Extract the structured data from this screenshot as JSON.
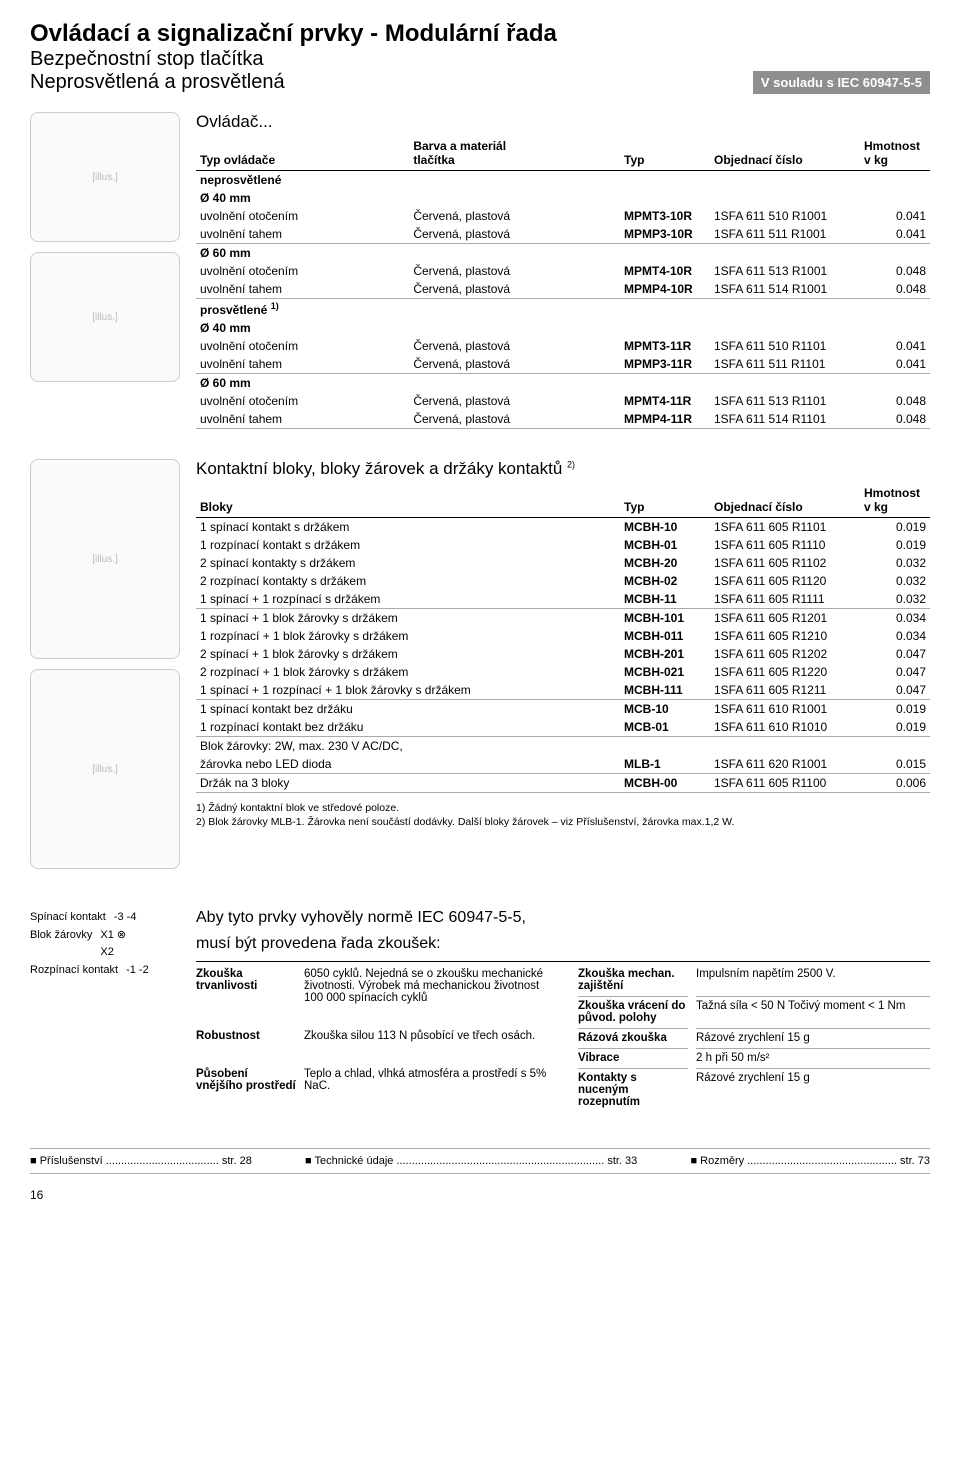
{
  "header": {
    "title": "Ovládací a signalizační prvky - Modulární řada",
    "sub1": "Bezpečnostní stop tlačítka",
    "sub2": "Neprosvětlená a prosvětlená",
    "iec_badge": "V souladu s IEC 60947-5-5"
  },
  "actuator_section": {
    "heading": "Ovládač...",
    "columns": {
      "c1": "Typ ovládače",
      "c2a": "Barva a materiál",
      "c2b": "tlačítka",
      "c3": "Typ",
      "c4": "Objednací číslo",
      "c5": "Hmotnost v kg"
    },
    "group1": "neprosvětlené",
    "d1": "Ø 40 mm",
    "rows1": [
      {
        "a": "uvolnění otočením",
        "b": "Červená, plastová",
        "t": "MPMT3-10R",
        "o": "1SFA 611 510 R1001",
        "w": "0.041"
      },
      {
        "a": "uvolnění tahem",
        "b": "Červená, plastová",
        "t": "MPMP3-10R",
        "o": "1SFA 611 511 R1001",
        "w": "0.041"
      }
    ],
    "d2": "Ø 60 mm",
    "rows2": [
      {
        "a": "uvolnění otočením",
        "b": "Červená, plastová",
        "t": "MPMT4-10R",
        "o": "1SFA 611 513 R1001",
        "w": "0.048"
      },
      {
        "a": "uvolnění tahem",
        "b": "Červená, plastová",
        "t": "MPMP4-10R",
        "o": "1SFA 611 514 R1001",
        "w": "0.048"
      }
    ],
    "group2": "prosvětlené ",
    "group2_sup": "1)",
    "d3": "Ø 40 mm",
    "rows3": [
      {
        "a": "uvolnění otočením",
        "b": "Červená, plastová",
        "t": "MPMT3-11R",
        "o": "1SFA 611 510 R1101",
        "w": "0.041"
      },
      {
        "a": "uvolnění tahem",
        "b": "Červená, plastová",
        "t": "MPMP3-11R",
        "o": "1SFA 611 511 R1101",
        "w": "0.041"
      }
    ],
    "d4": "Ø 60 mm",
    "rows4": [
      {
        "a": "uvolnění otočením",
        "b": "Červená, plastová",
        "t": "MPMT4-11R",
        "o": "1SFA 611 513 R1101",
        "w": "0.048"
      },
      {
        "a": "uvolnění tahem",
        "b": "Červená, plastová",
        "t": "MPMP4-11R",
        "o": "1SFA 611 514 R1101",
        "w": "0.048"
      }
    ]
  },
  "blocks_section": {
    "heading": "Kontaktní bloky, bloky žárovek  a držáky kontaktů ",
    "heading_sup": "2)",
    "columns": {
      "c1": "Bloky",
      "c2": "Typ",
      "c3": "Objednací číslo",
      "c4": "Hmotnost v kg"
    },
    "grpA": [
      {
        "d": "1 spínací kontakt s držákem",
        "t": "MCBH-10",
        "o": "1SFA 611 605 R1101",
        "w": "0.019"
      },
      {
        "d": "1 rozpínací kontakt s držákem",
        "t": "MCBH-01",
        "o": "1SFA 611 605 R1110",
        "w": "0.019"
      },
      {
        "d": "2 spínací kontakty s držákem",
        "t": "MCBH-20",
        "o": "1SFA 611 605 R1102",
        "w": "0.032"
      },
      {
        "d": "2 rozpínací kontakty s držákem",
        "t": "MCBH-02",
        "o": "1SFA 611 605 R1120",
        "w": "0.032"
      },
      {
        "d": "1 spínací + 1 rozpínací s držákem",
        "t": "MCBH-11",
        "o": "1SFA 611 605 R1111",
        "w": "0.032"
      }
    ],
    "grpB": [
      {
        "d": "1 spínací + 1 blok žárovky s držákem",
        "t": "MCBH-101",
        "o": "1SFA 611 605 R1201",
        "w": "0.034"
      },
      {
        "d": "1 rozpínací + 1 blok žárovky s držákem",
        "t": "MCBH-011",
        "o": "1SFA 611 605 R1210",
        "w": "0.034"
      },
      {
        "d": "2 spínací + 1 blok žárovky s držákem",
        "t": "MCBH-201",
        "o": "1SFA 611 605 R1202",
        "w": "0.047"
      },
      {
        "d": "2 rozpínací + 1 blok žárovky s držákem",
        "t": "MCBH-021",
        "o": "1SFA 611 605 R1220",
        "w": "0.047"
      },
      {
        "d": "1 spínací + 1 rozpínací + 1 blok žárovky s držákem",
        "t": "MCBH-111",
        "o": "1SFA 611 605 R1211",
        "w": "0.047"
      }
    ],
    "grpC": [
      {
        "d": "1 spínací kontakt bez držáku",
        "t": "MCB-10",
        "o": "1SFA 611 610 R1001",
        "w": "0.019"
      },
      {
        "d": "1 rozpínací kontakt bez držáku",
        "t": "MCB-01",
        "o": "1SFA 611 610 R1010",
        "w": "0.019"
      }
    ],
    "grpD_label1": "Blok žárovky: 2W, max. 230 V AC/DC,",
    "grpD_label2": "žárovka nebo LED dioda",
    "grpD": {
      "t": "MLB-1",
      "o": "1SFA 611 620 R1001",
      "w": "0.015"
    },
    "grpE_label": "Držák na 3 bloky",
    "grpE": {
      "t": "MCBH-00",
      "o": "1SFA 611 605 R1100",
      "w": "0.006"
    },
    "footnote1": "1) Žádný kontaktní blok ve středové poloze.",
    "footnote2": "2) Blok žárovky MLB-1. Žárovka není součástí dodávky. Další bloky žárovek – viz Příslušenství, žárovka max.1,2 W."
  },
  "legend": {
    "l1": "Spínací kontakt",
    "s1": "-3    -4",
    "l2": "Blok žárovky",
    "s2": "X1 ⊗ X2",
    "l3": "Rozpínací kontakt",
    "s3": "-1    -2"
  },
  "tests": {
    "intro1": "Aby tyto prvky vyhověly normě IEC 60947-5-5,",
    "intro2": "musí být provedena řada zkoušek:",
    "A": [
      {
        "l": "Zkouška trvanlivosti",
        "v": "6050 cyklů. Nejedná se o zkoušku mechanické životnosti. Výrobek má mechanickou životnost 100 000 spínacích cyklů"
      },
      {
        "l": "Robustnost",
        "v": "Zkouška silou 113 N působící ve třech osách."
      },
      {
        "l": "Působení vnějšího prostředí",
        "v": "Teplo a chlad, vlhká atmosféra a prostředí s 5% NaC."
      }
    ],
    "B": [
      {
        "l": "Zkouška mechan. zajištění",
        "v": "Impulsním napětím 2500 V."
      },
      {
        "l": "Zkouška vrácení do původ. polohy",
        "v": "Tažná síla < 50 N Točivý moment < 1 Nm"
      },
      {
        "l": "Rázová zkouška",
        "v": "Rázové zrychlení 15 g"
      },
      {
        "l": "Vibrace",
        "v": "2 h při 50 m/s²"
      },
      {
        "l": "Kontakty s nuceným rozepnutím",
        "v": "Rázové zrychlení 15 g"
      }
    ]
  },
  "footer": {
    "a": "Příslušenství ..................................... str. 28",
    "b": "Technické údaje .................................................................... str. 33",
    "c": "Rozměry ................................................. str. 73",
    "page": "16"
  },
  "colors": {
    "badge_bg": "#8e8e8e",
    "border": "#aaaaaa"
  }
}
